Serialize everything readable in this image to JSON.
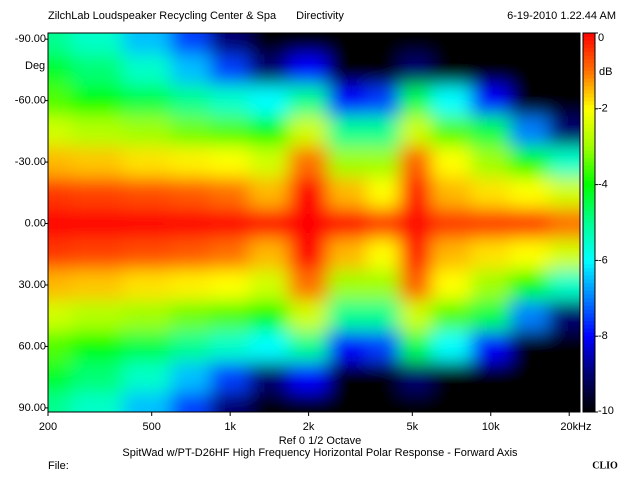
{
  "chart_data": {
    "type": "heatmap",
    "title": "Directivity",
    "header_left": "ZilchLab Loudspeaker Recycling Center & Spa",
    "header_right": "6-19-2010 1.22.44 AM",
    "ylabel": "Deg",
    "xunit": "Hz",
    "colorbar_label": "dB",
    "footer_line1": "Ref 0   1/2 Octave",
    "footer_line2": "SpitWad w/PT-D26HF High Frequency Horizontal Polar Response -  Forward Axis",
    "file_label": "File:",
    "brand": "CLIO",
    "log_x": true,
    "xlim": [
      200,
      22000
    ],
    "xticks": [
      200,
      500,
      {
        "value": 1000,
        "label": "1k"
      },
      {
        "value": 2000,
        "label": "2k"
      },
      {
        "value": 5000,
        "label": "5k"
      },
      {
        "value": 10000,
        "label": "10k"
      },
      {
        "value": 20000,
        "label": "20k"
      }
    ],
    "ylim": [
      -93,
      92
    ],
    "yticks": [
      {
        "value": -90,
        "label": "-90.00"
      },
      {
        "value": -60,
        "label": "-60.00"
      },
      {
        "value": -30,
        "label": "-30.00"
      },
      {
        "value": 0,
        "label": "0.00"
      },
      {
        "value": 30,
        "label": "30.00"
      },
      {
        "value": 60,
        "label": "60.00"
      },
      {
        "value": 90,
        "label": "90.00"
      }
    ],
    "zlim": [
      -10,
      0
    ],
    "zticks": [
      0,
      -2,
      -4,
      -6,
      -8,
      -10
    ],
    "colors": [
      "#ff0000",
      "#ff7000",
      "#ffff00",
      "#a0ff00",
      "#00ff00",
      "#00ff90",
      "#00ffff",
      "#0080ff",
      "#0000ff",
      "#000070",
      "#000000"
    ],
    "x": [
      200,
      300,
      500,
      700,
      1000,
      1400,
      2000,
      2800,
      4000,
      5000,
      7000,
      10000,
      14000,
      20000
    ],
    "y": [
      -90,
      -75,
      -60,
      -45,
      -30,
      -15,
      0,
      15,
      30,
      45,
      60,
      75,
      90
    ],
    "z": [
      [
        -5,
        -5.5,
        -6.5,
        -7.5,
        -9,
        -10,
        -10,
        -10,
        -10,
        -10,
        -10,
        -10,
        -10,
        -10
      ],
      [
        -4.3,
        -4.8,
        -5.5,
        -6.5,
        -7.5,
        -9,
        -8,
        -10,
        -10,
        -9,
        -10,
        -10,
        -10,
        -10
      ],
      [
        -3.5,
        -4,
        -4.5,
        -5,
        -5.5,
        -6,
        -5,
        -8,
        -7.5,
        -4.5,
        -6,
        -8,
        -10,
        -10
      ],
      [
        -2.5,
        -2.8,
        -3,
        -3.3,
        -3.5,
        -4,
        -2.5,
        -5,
        -5,
        -2.5,
        -3.5,
        -4.5,
        -7,
        -9
      ],
      [
        -1.5,
        -1.6,
        -1.8,
        -1.9,
        -2,
        -2.5,
        -1,
        -3,
        -3,
        -0.8,
        -2,
        -3,
        -4,
        -5.5
      ],
      [
        -0.5,
        -0.6,
        -0.7,
        -0.8,
        -1,
        -1.5,
        0,
        -1.5,
        -2,
        0,
        -1.5,
        -1.8,
        -2,
        -2.5
      ],
      [
        0,
        0,
        0,
        0,
        0,
        0,
        0,
        0,
        -0.5,
        0,
        -0.5,
        -0.5,
        -0.5,
        -1
      ],
      [
        -0.5,
        -0.6,
        -0.7,
        -0.8,
        -1,
        -1.5,
        0,
        -1.5,
        -2,
        0,
        -1.5,
        -1.8,
        -2,
        -2.5
      ],
      [
        -1.5,
        -1.6,
        -1.8,
        -1.9,
        -2,
        -2.5,
        -1,
        -3,
        -3,
        -0.8,
        -2,
        -3,
        -4,
        -5.5
      ],
      [
        -2.5,
        -2.8,
        -3,
        -3.3,
        -3.5,
        -4,
        -2.5,
        -5,
        -5,
        -2.5,
        -3.5,
        -4.5,
        -7,
        -9
      ],
      [
        -3.5,
        -4,
        -4.5,
        -5,
        -5.5,
        -6,
        -5,
        -8,
        -7.5,
        -4.5,
        -6,
        -8,
        -10,
        -10
      ],
      [
        -4.3,
        -4.8,
        -5.5,
        -6.5,
        -7.5,
        -9,
        -8,
        -10,
        -10,
        -9,
        -10,
        -10,
        -10,
        -10
      ],
      [
        -5,
        -5.5,
        -6.5,
        -7.5,
        -9,
        -10,
        -10,
        -10,
        -10,
        -10,
        -10,
        -10,
        -10,
        -10
      ]
    ]
  }
}
